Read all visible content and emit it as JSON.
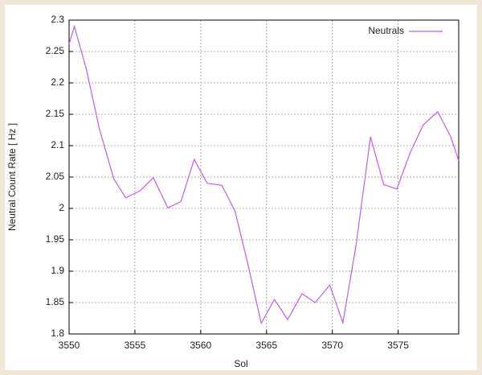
{
  "chart_data": {
    "type": "line",
    "x_label": "Sol",
    "y_label": "Neutral Count Rate [ Hz ]",
    "xlim": [
      3550,
      3579.6
    ],
    "ylim": [
      1.8,
      2.3
    ],
    "xticks": [
      3550,
      3555,
      3560,
      3565,
      3570,
      3575
    ],
    "yticks": [
      1.8,
      1.85,
      1.9,
      1.95,
      2,
      2.05,
      2.1,
      2.15,
      2.2,
      2.25,
      2.3
    ],
    "grid": true,
    "legend": "top-right",
    "x": [
      3550,
      3550.4,
      3551.3,
      3552.3,
      3553.4,
      3554.3,
      3555.4,
      3556.4,
      3557.5,
      3558.5,
      3559.5,
      3560.5,
      3561.6,
      3562.6,
      3563.5,
      3564.6,
      3565.6,
      3566.6,
      3567.7,
      3568.7,
      3569.8,
      3570.8,
      3571.8,
      3572.9,
      3573.9,
      3574.9,
      3575.9,
      3576.9,
      3578.0,
      3579.0,
      3579.6
    ],
    "series": [
      {
        "name": "Neutrals",
        "color": "#bf5fe6",
        "values": [
          2.262,
          2.29,
          2.223,
          2.127,
          2.047,
          2.017,
          2.028,
          2.049,
          2.001,
          2.011,
          2.078,
          2.04,
          2.037,
          1.996,
          1.919,
          1.817,
          1.855,
          1.823,
          1.864,
          1.85,
          1.878,
          1.818,
          1.941,
          2.114,
          2.038,
          2.031,
          2.088,
          2.133,
          2.154,
          2.114,
          2.076
        ]
      }
    ]
  }
}
